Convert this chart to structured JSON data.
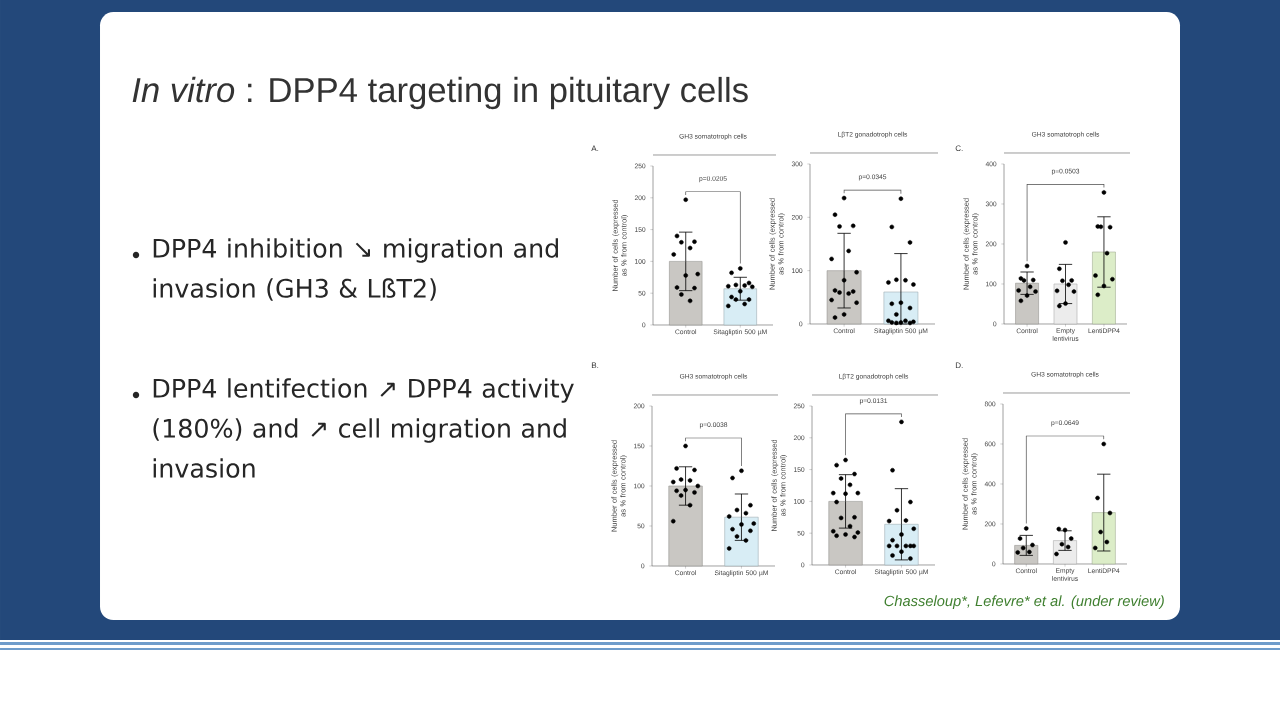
{
  "chart_data": [
    {
      "type": "other",
      "title": "*In vitro* : DPP4 targeting in pituitary cells",
      "annotations": [
        "DPP4 inhibition ↘ migration and invasion (GH3 & LßT2)",
        "DPP4 lentifection ↗ DPP4 activity (180%) and ↗ cell migration and invasion",
        "Chasseloup*, Lefevre* et al. (under review)"
      ]
    },
    {
      "type": "bar",
      "title": "GH3 somatotroph cells",
      "ylabel": "Number of cells (expressed as % from control)",
      "categories": [
        "Control",
        "Sitagliptin 500 µM"
      ],
      "ylim": [
        0,
        250
      ],
      "yticks": [
        0,
        50,
        100,
        150,
        200,
        250
      ],
      "marker": "circle",
      "annotations": [
        "p=0.0205",
        "A."
      ],
      "series": [
        {
          "type": "bar",
          "colors": [
            "#c9c7c3",
            "#d8edf5"
          ],
          "values": [
            100,
            57
          ],
          "errors": [
            46,
            18
          ]
        },
        {
          "type": "scatter",
          "color": "#000000",
          "x": [
            "Control",
            "Control",
            "Control",
            "Control",
            "Control",
            "Control",
            "Control",
            "Control",
            "Control",
            "Control",
            "Control",
            "Control",
            "Sitagliptin 500 µM",
            "Sitagliptin 500 µM",
            "Sitagliptin 500 µM",
            "Sitagliptin 500 µM",
            "Sitagliptin 500 µM",
            "Sitagliptin 500 µM",
            "Sitagliptin 500 µM",
            "Sitagliptin 500 µM",
            "Sitagliptin 500 µM",
            "Sitagliptin 500 µM",
            "Sitagliptin 500 µM",
            "Sitagliptin 500 µM",
            "Sitagliptin 500 µM"
          ],
          "values": [
            197,
            140,
            131,
            130,
            121,
            111,
            80,
            78,
            59,
            58,
            48,
            38,
            89,
            82,
            66,
            63,
            62,
            61,
            60,
            53,
            44,
            40,
            40,
            33,
            30
          ]
        }
      ]
    },
    {
      "type": "bar",
      "title": "LβT2 gonadotroph cells",
      "ylabel": "Number of cells (expressed as % from control)",
      "categories": [
        "Control",
        "Sitagliptin 500 µM"
      ],
      "ylim": [
        0,
        300
      ],
      "yticks": [
        0,
        100,
        200,
        300
      ],
      "marker": "circle",
      "annotations": [
        "p=0.0345"
      ],
      "series": [
        {
          "type": "bar",
          "colors": [
            "#c9c7c3",
            "#d8edf5"
          ],
          "values": [
            100,
            60
          ],
          "errors": [
            70,
            [
              0,
              132
            ]
          ]
        },
        {
          "type": "scatter",
          "color": "#000000",
          "x": [
            "Control",
            "Control",
            "Control",
            "Control",
            "Control",
            "Control",
            "Control",
            "Control",
            "Control",
            "Control",
            "Control",
            "Control",
            "Control",
            "Control",
            "Control",
            "Control",
            "Sitagliptin 500 µM",
            "Sitagliptin 500 µM",
            "Sitagliptin 500 µM",
            "Sitagliptin 500 µM",
            "Sitagliptin 500 µM",
            "Sitagliptin 500 µM",
            "Sitagliptin 500 µM",
            "Sitagliptin 500 µM",
            "Sitagliptin 500 µM",
            "Sitagliptin 500 µM",
            "Sitagliptin 500 µM",
            "Sitagliptin 500 µM",
            "Sitagliptin 500 µM",
            "Sitagliptin 500 µM",
            "Sitagliptin 500 µM",
            "Sitagliptin 500 µM",
            "Sitagliptin 500 µM",
            "Sitagliptin 500 µM"
          ],
          "values": [
            236,
            205,
            184,
            183,
            137,
            122,
            97,
            82,
            63,
            61,
            59,
            57,
            45,
            40,
            18,
            12,
            235,
            182,
            153,
            83,
            82,
            78,
            74,
            40,
            38,
            30,
            18,
            6,
            6,
            4,
            3,
            3,
            2,
            2
          ]
        }
      ]
    },
    {
      "type": "bar",
      "title": "GH3 somatotroph cells",
      "ylabel": "Number of cells (expressed as % from control)",
      "categories": [
        "Control",
        "Empty lentivirus",
        "LentiDPP4"
      ],
      "ylim": [
        0,
        400
      ],
      "yticks": [
        0,
        100,
        200,
        300,
        400
      ],
      "marker": "circle",
      "annotations": [
        "p=0.0503",
        "C."
      ],
      "series": [
        {
          "type": "bar",
          "colors": [
            "#c9c7c3",
            "#ececec",
            "#dcedc8"
          ],
          "values": [
            102,
            100,
            180
          ],
          "errors": [
            28,
            49,
            88
          ]
        },
        {
          "type": "scatter",
          "color": "#000000",
          "x": [
            "Control",
            "Control",
            "Control",
            "Control",
            "Control",
            "Control",
            "Control",
            "Control",
            "Control",
            "Empty lentivirus",
            "Empty lentivirus",
            "Empty lentivirus",
            "Empty lentivirus",
            "Empty lentivirus",
            "Empty lentivirus",
            "Empty lentivirus",
            "Empty lentivirus",
            "Empty lentivirus",
            "LentiDPP4",
            "LentiDPP4",
            "LentiDPP4",
            "LentiDPP4",
            "LentiDPP4",
            "LentiDPP4",
            "LentiDPP4",
            "LentiDPP4",
            "LentiDPP4"
          ],
          "values": [
            145,
            114,
            110,
            109,
            93,
            84,
            81,
            71,
            58,
            204,
            138,
            109,
            108,
            98,
            83,
            81,
            51,
            45,
            329,
            244,
            242,
            243,
            177,
            121,
            112,
            95,
            73
          ]
        }
      ]
    },
    {
      "type": "bar",
      "title": "GH3 somatotroph cells",
      "ylabel": "Number of cells (expressed as % from control)",
      "categories": [
        "Control",
        "Sitagliptin 500 µM"
      ],
      "ylim": [
        0,
        200
      ],
      "yticks": [
        0,
        50,
        100,
        150,
        200
      ],
      "marker": "circle",
      "annotations": [
        "p=0.0038",
        "B."
      ],
      "series": [
        {
          "type": "bar",
          "colors": [
            "#c9c7c3",
            "#d8edf5"
          ],
          "values": [
            100,
            61
          ],
          "errors": [
            24,
            29
          ]
        },
        {
          "type": "scatter",
          "color": "#000000",
          "x": [
            "Control",
            "Control",
            "Control",
            "Control",
            "Control",
            "Control",
            "Control",
            "Control",
            "Control",
            "Control",
            "Control",
            "Control",
            "Control",
            "Sitagliptin 500 µM",
            "Sitagliptin 500 µM",
            "Sitagliptin 500 µM",
            "Sitagliptin 500 µM",
            "Sitagliptin 500 µM",
            "Sitagliptin 500 µM",
            "Sitagliptin 500 µM",
            "Sitagliptin 500 µM",
            "Sitagliptin 500 µM",
            "Sitagliptin 500 µM",
            "Sitagliptin 500 µM",
            "Sitagliptin 500 µM",
            "Sitagliptin 500 µM"
          ],
          "values": [
            150,
            122,
            120,
            108,
            107,
            105,
            100,
            95,
            94,
            92,
            88,
            76,
            56,
            119,
            110,
            76,
            70,
            66,
            62,
            53,
            52,
            46,
            44,
            37,
            32,
            22
          ]
        }
      ]
    },
    {
      "type": "bar",
      "title": "LβT2 gonadotroph cells",
      "ylabel": "Number of cells (expressed as % from control)",
      "categories": [
        "Control",
        "Sitagliptin 500 µM"
      ],
      "ylim": [
        0,
        250
      ],
      "yticks": [
        0,
        50,
        100,
        150,
        200,
        250
      ],
      "marker": "circle",
      "annotations": [
        "p=0.0131"
      ],
      "series": [
        {
          "type": "bar",
          "colors": [
            "#c9c7c3",
            "#d8edf5"
          ],
          "values": [
            100,
            64
          ],
          "errors": [
            42,
            56
          ]
        },
        {
          "type": "scatter",
          "color": "#000000",
          "x": [
            "Control",
            "Control",
            "Control",
            "Control",
            "Control",
            "Control",
            "Control",
            "Control",
            "Control",
            "Control",
            "Control",
            "Control",
            "Control",
            "Control",
            "Control",
            "Control",
            "Control",
            "Sitagliptin 500 µM",
            "Sitagliptin 500 µM",
            "Sitagliptin 500 µM",
            "Sitagliptin 500 µM",
            "Sitagliptin 500 µM",
            "Sitagliptin 500 µM",
            "Sitagliptin 500 µM",
            "Sitagliptin 500 µM",
            "Sitagliptin 500 µM",
            "Sitagliptin 500 µM",
            "Sitagliptin 500 µM",
            "Sitagliptin 500 µM",
            "Sitagliptin 500 µM",
            "Sitagliptin 500 µM",
            "Sitagliptin 500 µM",
            "Sitagliptin 500 µM",
            "Sitagliptin 500 µM"
          ],
          "values": [
            165,
            157,
            143,
            136,
            126,
            113,
            113,
            112,
            99,
            75,
            74,
            61,
            53,
            51,
            48,
            46,
            44,
            225,
            149,
            99,
            86,
            70,
            69,
            57,
            48,
            39,
            30,
            30,
            30,
            30,
            30,
            21,
            15,
            10
          ]
        }
      ]
    },
    {
      "type": "bar",
      "title": "GH3 somatotroph cells",
      "ylabel": "Number of cells (expressed as % from control)",
      "categories": [
        "Control",
        "Empty lentivirus",
        "LentiDPP4"
      ],
      "ylim": [
        0,
        800
      ],
      "yticks": [
        0,
        200,
        400,
        600,
        800
      ],
      "marker": "circle",
      "annotations": [
        "p=0.0649",
        "D."
      ],
      "series": [
        {
          "type": "bar",
          "colors": [
            "#c9c7c3",
            "#ececec",
            "#dcedc8"
          ],
          "values": [
            93,
            117,
            257
          ],
          "errors": [
            50,
            49,
            192
          ]
        },
        {
          "type": "scatter",
          "color": "#000000",
          "x": [
            "Control",
            "Control",
            "Control",
            "Control",
            "Control",
            "Control",
            "Empty lentivirus",
            "Empty lentivirus",
            "Empty lentivirus",
            "Empty lentivirus",
            "Empty lentivirus",
            "Empty lentivirus",
            "LentiDPP4",
            "LentiDPP4",
            "LentiDPP4",
            "LentiDPP4",
            "LentiDPP4",
            "LentiDPP4"
          ],
          "values": [
            178,
            127,
            95,
            80,
            60,
            58,
            170,
            175,
            127,
            99,
            85,
            50,
            600,
            330,
            255,
            160,
            110,
            80
          ]
        }
      ]
    }
  ]
}
